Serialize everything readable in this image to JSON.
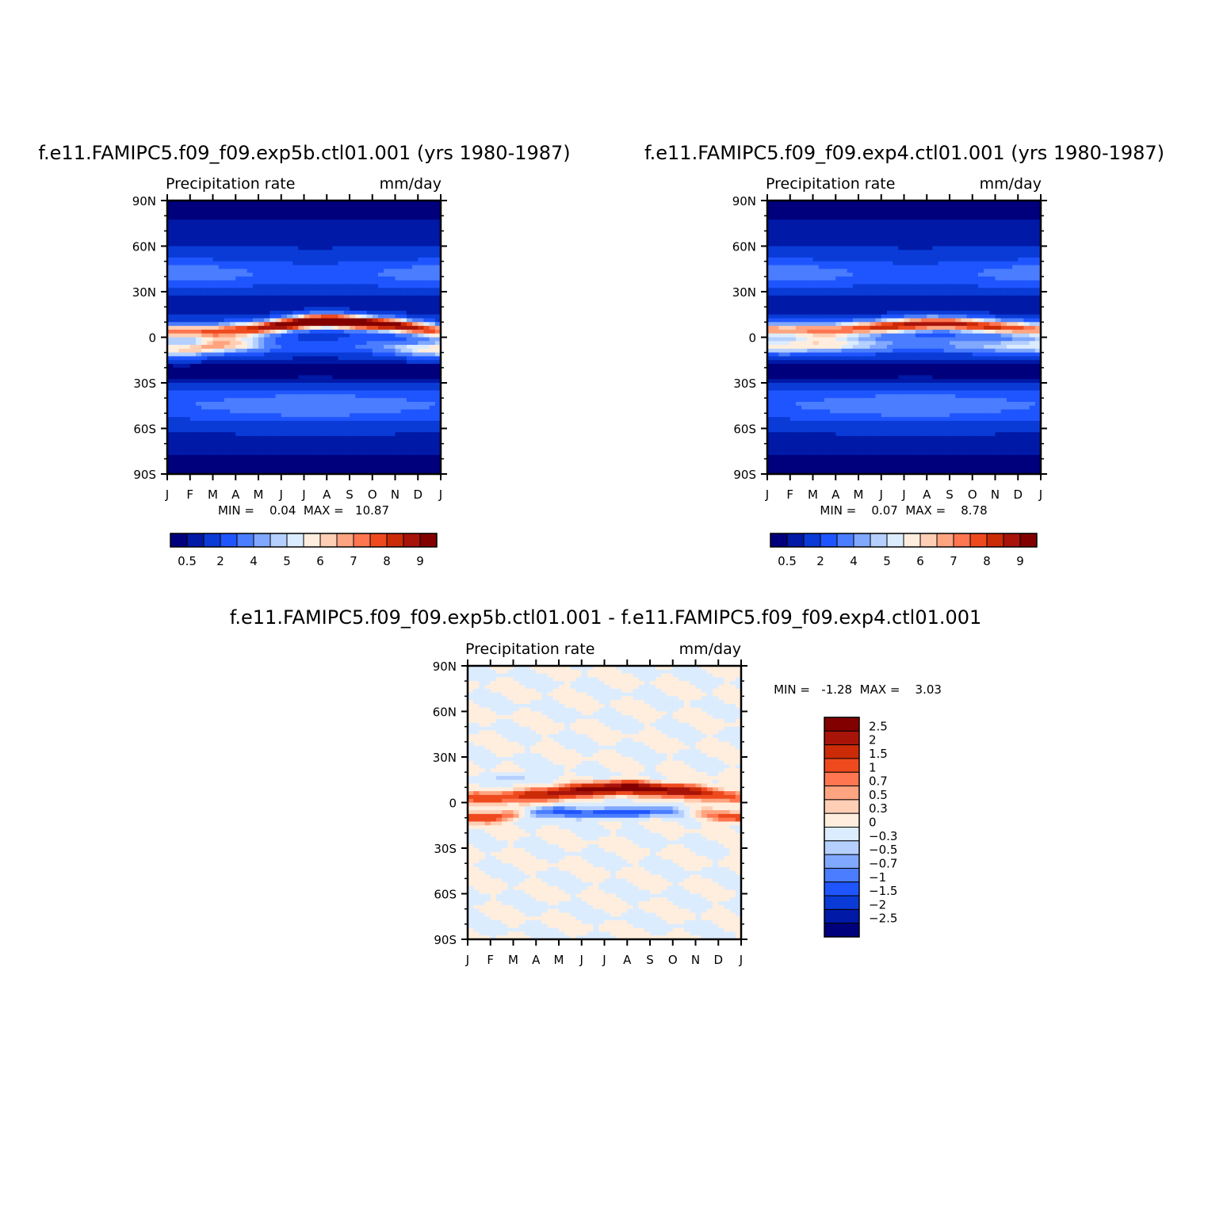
{
  "chart_data": [
    {
      "type": "heatmap",
      "title": "f.e11.FAMIPC5.f09_f09.exp5b.ctl01.001 (yrs 1980-1987)",
      "subtitle_left": "Precipitation rate",
      "subtitle_right": "mm/day",
      "x_ticks": [
        "J",
        "F",
        "M",
        "A",
        "M",
        "J",
        "J",
        "A",
        "S",
        "O",
        "N",
        "D",
        "J"
      ],
      "y_ticks": [
        "90N",
        "60N",
        "30N",
        "0",
        "30S",
        "60S",
        "90S"
      ],
      "ylim": [
        -90,
        90
      ],
      "stats": "MIN =    0.04  MAX =   10.87",
      "colorbar": {
        "orientation": "horizontal",
        "labels": [
          "0.5",
          "2",
          "4",
          "5",
          "6",
          "7",
          "8",
          "9"
        ],
        "colors": [
          "#00007d",
          "#0019a6",
          "#0a3bd6",
          "#1f55ff",
          "#4a7dff",
          "#80a8ff",
          "#b5d0ff",
          "#dcecff",
          "#ffeedd",
          "#ffcfb5",
          "#ffa480",
          "#ff7650",
          "#ee4a1e",
          "#cc2b08",
          "#a8140a",
          "#830000"
        ]
      },
      "field": {
        "itcz_peak_by_month": [
          7.2,
          7.0,
          7.3,
          7.6,
          8.4,
          9.6,
          10.5,
          10.9,
          10.6,
          10.0,
          9.4,
          8.4,
          7.2
        ],
        "itcz_lat_by_month": [
          4,
          4,
          4,
          5,
          6,
          8,
          10,
          11,
          10,
          9,
          8,
          6,
          4
        ],
        "secondary_itcz_peak": [
          6.2,
          6.4,
          6.8,
          6.5,
          4.8,
          3.0,
          2.5,
          2.5,
          3.0,
          3.6,
          4.6,
          5.8,
          6.2
        ],
        "secondary_itcz_lat": [
          -8,
          -8,
          -6,
          -5,
          -5,
          -6,
          -6,
          -6,
          -6,
          -6,
          -7,
          -8,
          -8
        ]
      }
    },
    {
      "type": "heatmap",
      "title": "f.e11.FAMIPC5.f09_f09.exp4.ctl01.001 (yrs 1980-1987)",
      "subtitle_left": "Precipitation rate",
      "subtitle_right": "mm/day",
      "x_ticks": [
        "J",
        "F",
        "M",
        "A",
        "M",
        "J",
        "J",
        "A",
        "S",
        "O",
        "N",
        "D",
        "J"
      ],
      "y_ticks": [
        "90N",
        "60N",
        "30N",
        "0",
        "30S",
        "60S",
        "90S"
      ],
      "ylim": [
        -90,
        90
      ],
      "stats": "MIN =    0.07  MAX =    8.78",
      "colorbar": {
        "orientation": "horizontal",
        "labels": [
          "0.5",
          "2",
          "4",
          "5",
          "6",
          "7",
          "8",
          "9"
        ],
        "colors": [
          "#00007d",
          "#0019a6",
          "#0a3bd6",
          "#1f55ff",
          "#4a7dff",
          "#80a8ff",
          "#b5d0ff",
          "#dcecff",
          "#ffeedd",
          "#ffcfb5",
          "#ffa480",
          "#ff7650",
          "#ee4a1e",
          "#cc2b08",
          "#a8140a",
          "#830000"
        ]
      },
      "field": {
        "itcz_peak_by_month": [
          6.8,
          6.6,
          6.8,
          7.0,
          7.5,
          8.2,
          8.6,
          8.78,
          8.6,
          8.4,
          8.1,
          7.5,
          6.8
        ],
        "itcz_lat_by_month": [
          5,
          5,
          5,
          5,
          6,
          7,
          8,
          9,
          9,
          8,
          7,
          6,
          5
        ],
        "secondary_itcz_peak": [
          5.6,
          5.9,
          6.1,
          5.9,
          5.2,
          4.4,
          4.0,
          4.0,
          4.2,
          4.5,
          5.0,
          5.3,
          5.6
        ],
        "secondary_itcz_lat": [
          -6,
          -6,
          -5,
          -5,
          -5,
          -5,
          -5,
          -5,
          -5,
          -5,
          -6,
          -6,
          -6
        ]
      }
    },
    {
      "type": "heatmap",
      "title": "f.e11.FAMIPC5.f09_f09.exp5b.ctl01.001 - f.e11.FAMIPC5.f09_f09.exp4.ctl01.001",
      "subtitle_left": "Precipitation rate",
      "subtitle_right": "mm/day",
      "x_ticks": [
        "J",
        "F",
        "M",
        "A",
        "M",
        "J",
        "J",
        "A",
        "S",
        "O",
        "N",
        "D",
        "J"
      ],
      "y_ticks": [
        "90N",
        "60N",
        "30N",
        "0",
        "30S",
        "60S",
        "90S"
      ],
      "ylim": [
        -90,
        90
      ],
      "stats": "MIN =   -1.28  MAX =    3.03",
      "colorbar": {
        "orientation": "vertical",
        "labels": [
          "2.5",
          "2",
          "1.5",
          "1",
          "0.7",
          "0.5",
          "0.3",
          "0",
          "-0.3",
          "-0.5",
          "-0.7",
          "-1",
          "-1.5",
          "-2",
          "-2.5"
        ],
        "colors": [
          "#830000",
          "#a8140a",
          "#cc2b08",
          "#ee4a1e",
          "#ff7650",
          "#ffa480",
          "#ffcfb5",
          "#ffeedd",
          "#dcecff",
          "#b5d0ff",
          "#80a8ff",
          "#4a7dff",
          "#1f55ff",
          "#0a3bd6",
          "#0019a6",
          "#00007d"
        ]
      },
      "field": {
        "itcz_diff_by_month": [
          1.0,
          1.2,
          1.4,
          2.0,
          2.4,
          2.6,
          2.8,
          3.0,
          2.9,
          2.6,
          2.2,
          1.6,
          1.0
        ],
        "itcz_diff_lat": [
          3,
          3,
          4,
          5,
          6,
          8,
          9,
          10,
          9,
          8,
          7,
          5,
          3
        ],
        "south_band_diff": [
          1.4,
          1.2,
          1.0,
          -1.0,
          -1.2,
          -1.1,
          -1.28,
          -1.2,
          -1.0,
          -0.6,
          0.4,
          1.0,
          1.4
        ],
        "south_band_lat": [
          -10,
          -10,
          -8,
          -6,
          -6,
          -7,
          -7,
          -7,
          -6,
          -6,
          -7,
          -9,
          -10
        ]
      }
    }
  ]
}
